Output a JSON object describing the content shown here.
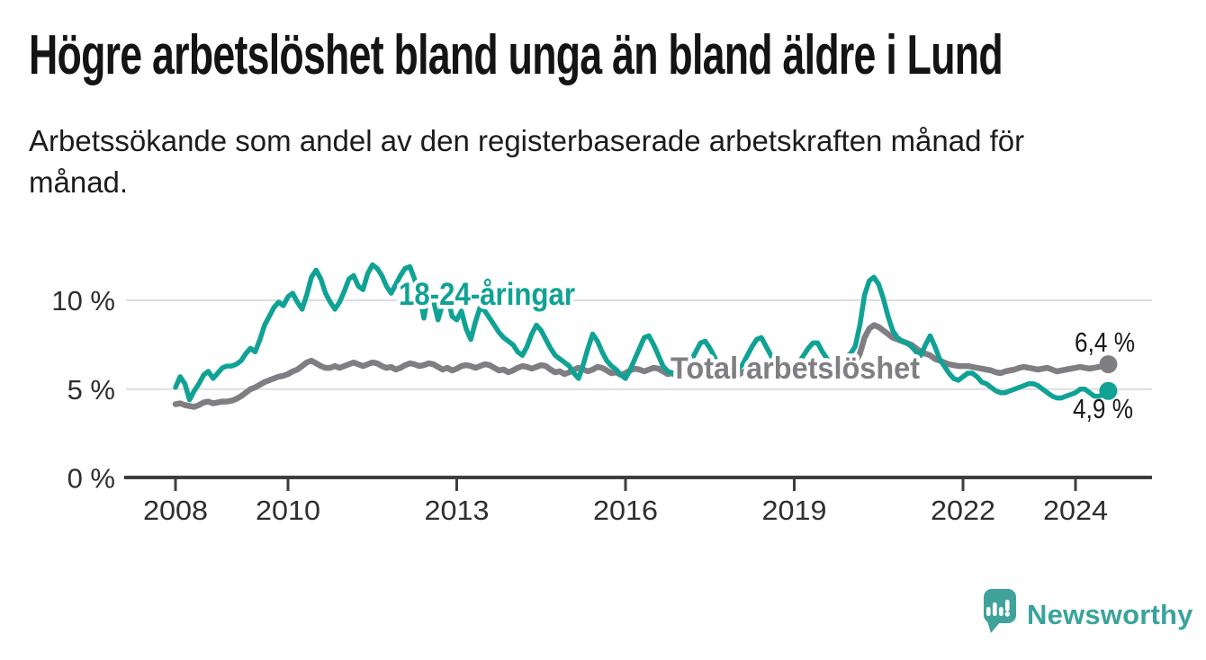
{
  "header": {
    "title": "Högre arbetslöshet bland unga än bland äldre i Lund",
    "subtitle": "Arbetssökande som andel av den registerbaserade arbetskraften månad för månad."
  },
  "footer": {
    "brand": "Newsworthy"
  },
  "colors": {
    "youth_teal": "#10A294",
    "total_gray": "#7F7F83",
    "brand_teal": "#3BA39C",
    "gridline": "#DEDEDE",
    "axis": "#3D3D3D",
    "text_dark": "#1A1A1A",
    "tick_text": "#2E2E2E"
  },
  "chart_data": {
    "type": "line",
    "title": "Högre arbetslöshet bland unga än bland äldre i Lund",
    "subtitle": "Arbetssökande som andel av den registerbaserade arbetskraften månad för månad.",
    "unit": "%",
    "x_monthly_from": "2008-01",
    "x_monthly_to": "2024-08",
    "x_tick_years": [
      2008,
      2010,
      2013,
      2016,
      2019,
      2022,
      2024
    ],
    "x_tick_labels": [
      "2008",
      "2010",
      "2013",
      "2016",
      "2019",
      "2022",
      "2024"
    ],
    "y_ticks": [
      {
        "value": 0,
        "label": "0 %"
      },
      {
        "value": 5,
        "label": "5 %"
      },
      {
        "value": 10,
        "label": "10 %"
      }
    ],
    "ylim": [
      0,
      12.5
    ],
    "grid": true,
    "legend_position": "inline-labels",
    "series": [
      {
        "key": "total",
        "name": "Total arbetslöshet",
        "color": "#7F7F83",
        "end_label": "6,4 %",
        "end_value": 6.4,
        "values": [
          4.15,
          4.2,
          4.1,
          4.05,
          4.0,
          4.1,
          4.25,
          4.3,
          4.2,
          4.25,
          4.3,
          4.3,
          4.35,
          4.45,
          4.6,
          4.8,
          5.0,
          5.1,
          5.25,
          5.4,
          5.5,
          5.6,
          5.7,
          5.75,
          5.85,
          6.0,
          6.1,
          6.3,
          6.5,
          6.6,
          6.45,
          6.3,
          6.2,
          6.2,
          6.3,
          6.2,
          6.3,
          6.4,
          6.5,
          6.4,
          6.3,
          6.4,
          6.5,
          6.45,
          6.3,
          6.2,
          6.25,
          6.1,
          6.2,
          6.35,
          6.45,
          6.4,
          6.3,
          6.35,
          6.45,
          6.4,
          6.25,
          6.1,
          6.2,
          6.05,
          6.15,
          6.3,
          6.35,
          6.3,
          6.2,
          6.3,
          6.4,
          6.35,
          6.2,
          6.05,
          6.1,
          5.95,
          6.05,
          6.2,
          6.3,
          6.25,
          6.15,
          6.25,
          6.35,
          6.3,
          6.1,
          5.95,
          6.0,
          5.85,
          5.95,
          6.1,
          6.2,
          6.1,
          6.0,
          6.1,
          6.25,
          6.2,
          6.05,
          5.9,
          5.95,
          5.8,
          5.9,
          6.05,
          6.15,
          6.1,
          6.0,
          6.1,
          6.2,
          6.15,
          6.0,
          5.85,
          5.9,
          5.75,
          5.85,
          6.0,
          6.1,
          6.05,
          5.95,
          6.05,
          6.2,
          6.15,
          5.95,
          5.8,
          5.85,
          5.7,
          5.8,
          5.95,
          6.05,
          6.0,
          5.9,
          6.0,
          6.15,
          6.1,
          5.9,
          5.8,
          5.85,
          5.75,
          5.85,
          6.0,
          6.1,
          6.05,
          6.0,
          6.1,
          6.25,
          6.2,
          6.05,
          6.0,
          6.05,
          6.15,
          6.3,
          6.5,
          7.0,
          7.9,
          8.4,
          8.6,
          8.5,
          8.3,
          8.1,
          7.9,
          7.8,
          7.7,
          7.6,
          7.5,
          7.3,
          7.1,
          7.0,
          6.9,
          6.7,
          6.6,
          6.5,
          6.4,
          6.35,
          6.3,
          6.3,
          6.3,
          6.25,
          6.2,
          6.15,
          6.1,
          6.05,
          5.95,
          5.9,
          6.0,
          6.05,
          6.1,
          6.2,
          6.25,
          6.2,
          6.15,
          6.1,
          6.15,
          6.2,
          6.1,
          6.0,
          6.05,
          6.1,
          6.15,
          6.2,
          6.25,
          6.2,
          6.15,
          6.2,
          6.25,
          6.3,
          6.4
        ]
      },
      {
        "key": "youth",
        "name": "18-24-åringar",
        "color": "#10A294",
        "end_label": "4,9 %",
        "end_value": 4.9,
        "values": [
          5.1,
          5.7,
          5.3,
          4.4,
          4.9,
          5.3,
          5.8,
          6.0,
          5.6,
          5.9,
          6.2,
          6.3,
          6.3,
          6.4,
          6.6,
          7.0,
          7.3,
          7.1,
          7.8,
          8.6,
          9.1,
          9.6,
          9.9,
          9.7,
          10.2,
          10.4,
          9.9,
          9.5,
          10.3,
          11.3,
          11.7,
          11.2,
          10.4,
          9.9,
          9.5,
          9.9,
          10.5,
          11.2,
          11.4,
          10.8,
          10.6,
          11.5,
          12.0,
          11.8,
          11.4,
          10.8,
          10.4,
          10.9,
          11.4,
          11.8,
          11.9,
          11.2,
          10.4,
          9.0,
          10.6,
          10.0,
          8.9,
          9.8,
          10.3,
          9.1,
          8.9,
          9.4,
          8.4,
          7.8,
          8.8,
          9.6,
          9.4,
          9.0,
          8.6,
          8.2,
          7.9,
          7.7,
          7.5,
          7.1,
          6.9,
          7.4,
          8.1,
          8.6,
          8.3,
          7.8,
          7.3,
          6.9,
          6.7,
          6.5,
          6.3,
          5.9,
          5.6,
          6.4,
          7.3,
          8.1,
          7.7,
          7.1,
          6.6,
          6.3,
          6.1,
          5.8,
          5.6,
          6.1,
          6.7,
          7.3,
          7.9,
          8.0,
          7.5,
          6.9,
          6.3,
          6.0,
          5.9,
          5.8,
          5.9,
          6.2,
          6.6,
          7.1,
          7.6,
          7.7,
          7.3,
          6.8,
          6.2,
          5.9,
          5.8,
          6.0,
          6.1,
          6.4,
          6.9,
          7.4,
          7.8,
          7.9,
          7.4,
          6.9,
          6.3,
          6.0,
          6.0,
          6.1,
          6.2,
          6.5,
          6.9,
          7.3,
          7.6,
          7.6,
          7.1,
          6.7,
          6.4,
          6.4,
          6.6,
          6.8,
          7.0,
          7.4,
          8.6,
          10.3,
          11.1,
          11.3,
          10.9,
          10.1,
          9.1,
          8.3,
          7.9,
          7.7,
          7.6,
          7.4,
          7.1,
          6.9,
          7.5,
          8.0,
          7.4,
          6.7,
          6.3,
          5.9,
          5.6,
          5.5,
          5.7,
          5.9,
          5.9,
          5.7,
          5.4,
          5.3,
          5.1,
          4.9,
          4.8,
          4.8,
          4.9,
          5.0,
          5.1,
          5.2,
          5.3,
          5.3,
          5.2,
          5.0,
          4.8,
          4.6,
          4.5,
          4.5,
          4.6,
          4.7,
          4.8,
          5.0,
          5.0,
          4.8,
          4.6,
          4.6,
          4.7,
          4.9
        ]
      }
    ]
  }
}
